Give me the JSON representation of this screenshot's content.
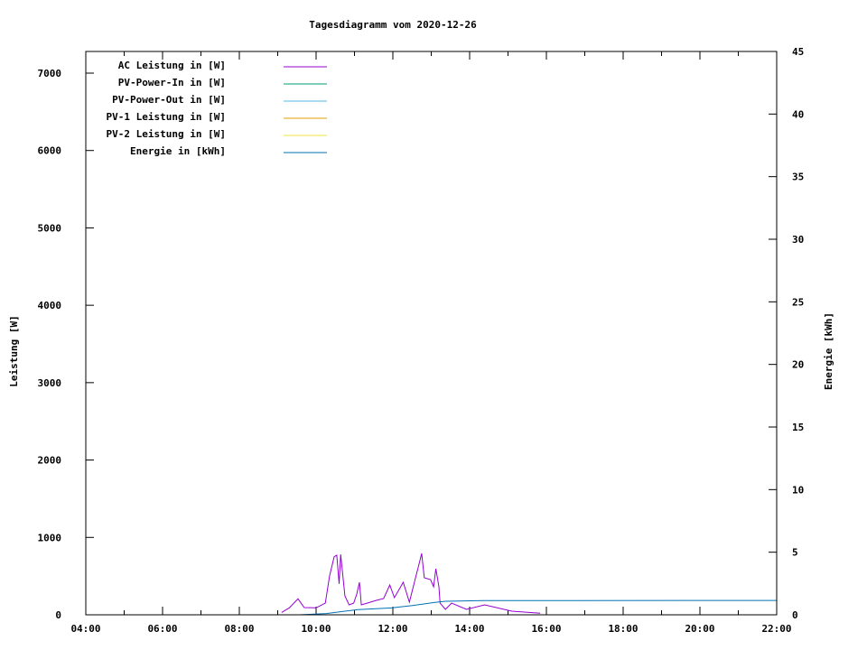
{
  "chart_data": {
    "type": "line",
    "title": "Tagesdiagramm vom 2020-12-26",
    "xlabel": "",
    "ylabel": "Leistung [W]",
    "y2label": "Energie [kWh]",
    "xlim": [
      4,
      22
    ],
    "ylim": [
      0,
      7280
    ],
    "y2lim": [
      0,
      45
    ],
    "x_ticks": [
      4,
      6,
      8,
      10,
      12,
      14,
      16,
      18,
      20,
      22
    ],
    "x_tick_labels": [
      "04:00",
      "06:00",
      "08:00",
      "10:00",
      "12:00",
      "14:00",
      "16:00",
      "18:00",
      "20:00",
      "22:00"
    ],
    "y_ticks": [
      0,
      1000,
      2000,
      3000,
      4000,
      5000,
      6000,
      7000
    ],
    "y_tick_labels": [
      "0",
      "1000",
      "2000",
      "3000",
      "4000",
      "5000",
      "6000",
      "7000"
    ],
    "y2_ticks": [
      0,
      5,
      10,
      15,
      20,
      25,
      30,
      35,
      40,
      45
    ],
    "y2_tick_labels": [
      "0",
      "5",
      "10",
      "15",
      "20",
      "25",
      "30",
      "35",
      "40",
      "45"
    ],
    "grid": false,
    "legend_placement": "top-left",
    "series": [
      {
        "name": "AC Leistung in [W]",
        "color": "#9400d3",
        "axis": "y",
        "x": [
          9.1,
          9.3,
          9.53,
          9.69,
          10.0,
          10.24,
          10.35,
          10.47,
          10.54,
          10.6,
          10.64,
          10.75,
          10.86,
          10.98,
          11.06,
          11.13,
          11.18,
          11.33,
          11.57,
          11.76,
          11.92,
          12.04,
          12.27,
          12.43,
          12.59,
          12.71,
          12.75,
          12.82,
          12.98,
          13.06,
          13.12,
          13.2,
          13.23,
          13.37,
          13.53,
          13.92,
          14.39,
          15.1,
          15.84
        ],
        "y": [
          30,
          90,
          206,
          93,
          90,
          150,
          500,
          750,
          770,
          400,
          780,
          245,
          128,
          150,
          270,
          420,
          128,
          150,
          187,
          210,
          385,
          222,
          420,
          163,
          478,
          712,
          793,
          478,
          455,
          362,
          595,
          362,
          150,
          70,
          150,
          70,
          128,
          47,
          20
        ]
      },
      {
        "name": "PV-Power-In in [W]",
        "color": "#009e73",
        "axis": "y",
        "x": [],
        "y": []
      },
      {
        "name": "PV-Power-Out in [W]",
        "color": "#56b4e9",
        "axis": "y",
        "x": [],
        "y": []
      },
      {
        "name": "PV-1 Leistung in [W]",
        "color": "#e69f00",
        "axis": "y",
        "x": [],
        "y": []
      },
      {
        "name": "PV-2 Leistung in [W]",
        "color": "#f0e442",
        "axis": "y",
        "x": [],
        "y": []
      },
      {
        "name": "Energie in [kWh]",
        "color": "#0072b2",
        "axis": "y2",
        "x": [
          9.57,
          10.27,
          10.7,
          11.1,
          11.96,
          12.51,
          13.1,
          13.37,
          14.35,
          22.0
        ],
        "y": [
          0,
          0.1,
          0.27,
          0.41,
          0.55,
          0.74,
          0.99,
          1.08,
          1.13,
          1.15
        ]
      }
    ]
  }
}
